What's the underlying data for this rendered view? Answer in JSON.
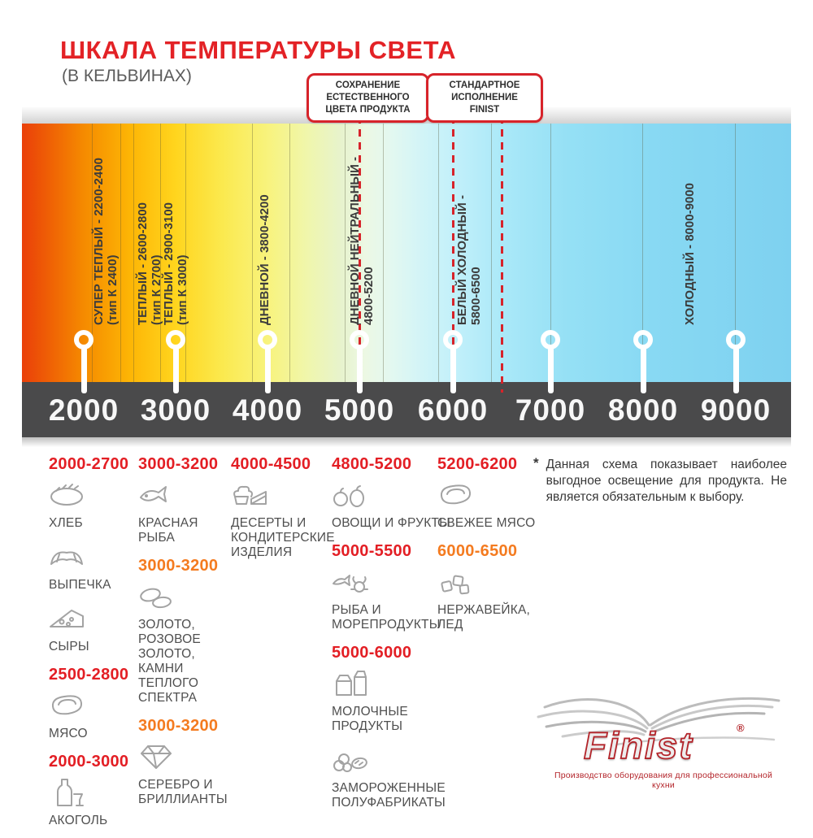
{
  "page": {
    "title": "ШКАЛА ТЕМПЕРАТУРЫ СВЕТА",
    "subtitle": "(В КЕЛЬВИНАХ)"
  },
  "callouts": [
    {
      "lines": [
        "СОХРАНЕНИЕ",
        "ЕСТЕСТВЕННОГО",
        "ЦВЕТА ПРОДУКТА"
      ]
    },
    {
      "lines": [
        "СТАНДАРТНОЕ",
        "ИСПОЛНЕНИЕ",
        "FINIST"
      ]
    }
  ],
  "scale": {
    "ticks": [
      "2000",
      "3000",
      "4000",
      "5000",
      "6000",
      "7000",
      "8000",
      "9000"
    ],
    "zones": [
      {
        "line1": "СУПЕР ТЕПЛЫЙ - 2200-2400",
        "line2": "(тип К 2400)"
      },
      {
        "line1": "ТЕПЛЫЙ - 2600-2800",
        "line2": "(тип К 2700)"
      },
      {
        "line1": "ТЕПЛЫЙ - 2900-3100",
        "line2": "(тип К 3000)"
      },
      {
        "line1": "ДНЕВНОЙ - 3800-4200",
        "line2": ""
      },
      {
        "line1": "ДНЕВНОЙ НЕЙТРАЛЬНЫЙ -",
        "line2": "4800-5200"
      },
      {
        "line1": "БЕЛЫЙ ХОЛОДНЫЙ -",
        "line2": "5800-6500"
      },
      {
        "line1": "ХОЛОДНЫЙ - 8000-9000",
        "line2": ""
      }
    ]
  },
  "legend_columns": [
    {
      "entries": [
        {
          "type": "range",
          "text": "2000-2700",
          "color": "red"
        },
        {
          "type": "product",
          "icon": "bread-icon",
          "label": "ХЛЕБ"
        },
        {
          "type": "product",
          "icon": "croissant-icon",
          "label": "ВЫПЕЧКА"
        },
        {
          "type": "product",
          "icon": "cheese-icon",
          "label": "СЫРЫ"
        },
        {
          "type": "range",
          "text": "2500-2800",
          "color": "red"
        },
        {
          "type": "product",
          "icon": "meat-icon",
          "label": "МЯСО"
        },
        {
          "type": "range",
          "text": "2000-3000",
          "color": "red"
        },
        {
          "type": "product",
          "icon": "alcohol-icon",
          "label": "АКОГОЛЬ"
        }
      ]
    },
    {
      "entries": [
        {
          "type": "range",
          "text": "3000-3200",
          "color": "red"
        },
        {
          "type": "product",
          "icon": "fish-icon",
          "label": "КРАСНАЯ РЫБА"
        },
        {
          "type": "range",
          "text": "3000-3200",
          "color": "orange"
        },
        {
          "type": "product",
          "icon": "rings-icon",
          "label": "ЗОЛОТО, РОЗОВОЕ ЗОЛОТО, КАМНИ ТЕПЛОГО СПЕКТРА"
        },
        {
          "type": "range",
          "text": "3000-3200",
          "color": "orange"
        },
        {
          "type": "product",
          "icon": "diamond-icon",
          "label": "СЕРЕБРО И БРИЛЛИАНТЫ"
        }
      ]
    },
    {
      "entries": [
        {
          "type": "range",
          "text": "4000-4500",
          "color": "red"
        },
        {
          "type": "product",
          "icon": "dessert-icon",
          "label": "ДЕСЕРТЫ И КОНДИТЕРСКИЕ ИЗДЕЛИЯ"
        }
      ]
    },
    {
      "entries": [
        {
          "type": "range",
          "text": "4800-5200",
          "color": "red"
        },
        {
          "type": "product",
          "icon": "fruits-icon",
          "label": "ОВОЩИ И ФРУКТЫ"
        },
        {
          "type": "range",
          "text": "5000-5500",
          "color": "red"
        },
        {
          "type": "product",
          "icon": "seafood-icon",
          "label": "РЫБА И МОРЕПРОДУКТЫ"
        },
        {
          "type": "range",
          "text": "5000-6000",
          "color": "red"
        },
        {
          "type": "product",
          "icon": "milk-icon",
          "label": "МОЛОЧНЫЕ ПРОДУКТЫ"
        },
        {
          "type": "product",
          "icon": "frozen-icon",
          "label": "ЗАМОРОЖЕННЫЕ ПОЛУФАБРИКАТЫ"
        }
      ]
    },
    {
      "entries": [
        {
          "type": "range",
          "text": "5200-6200",
          "color": "red"
        },
        {
          "type": "product",
          "icon": "steak-icon",
          "label": "СВЕЖЕЕ МЯСО"
        },
        {
          "type": "range",
          "text": "6000-6500",
          "color": "orange"
        },
        {
          "type": "product",
          "icon": "ice-icon",
          "label": "НЕРЖАВЕЙКА, ЛЕД"
        }
      ]
    }
  ],
  "note": {
    "marker": "*",
    "text": "Данная схема показывает наиболее выгодное освещение для продукта. Не является обязательным к выбору."
  },
  "logo": {
    "brand": "Finist",
    "registered": "®",
    "tagline": "Производство оборудования для профессиональной кухни"
  },
  "colors": {
    "accent_red": "#e32226",
    "range_red": "#e31e24",
    "range_orange": "#f47b20",
    "callout_border": "#d7232a",
    "bar_dark": "#4a4a4b",
    "gradient_warm_end": "#ea3f09",
    "gradient_cold_end": "#7ed1f0"
  }
}
